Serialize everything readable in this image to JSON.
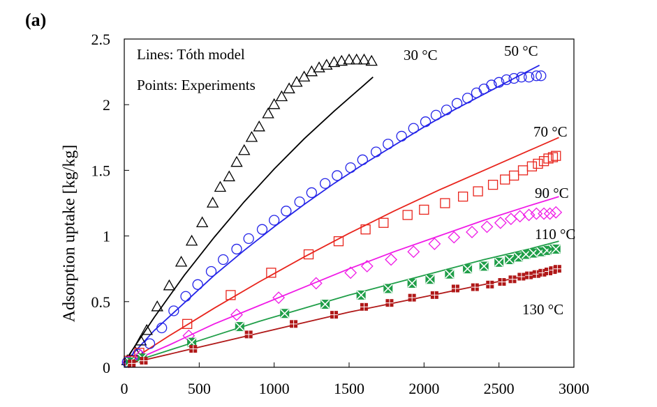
{
  "panel_label": "(a)",
  "notes": {
    "lines": "Lines: Tóth model",
    "points": "Points: Experiments"
  },
  "chart_data": {
    "type": "scatter",
    "ylabel": "Adsorption uptake [kg/kg]",
    "xlabel": "",
    "xlim": [
      0,
      3000
    ],
    "ylim": [
      0,
      2.5
    ],
    "x_ticks": [
      "0",
      "500",
      "1000",
      "1500",
      "2000",
      "2500",
      "3000"
    ],
    "y_ticks": [
      "0",
      "0.5",
      "1",
      "1.5",
      "2",
      "2.5"
    ],
    "grid": false,
    "series": [
      {
        "name": "30 °C",
        "color": "#000000",
        "marker": "triangle",
        "points": [
          [
            20,
            0.05
          ],
          [
            70,
            0.12
          ],
          [
            110,
            0.2
          ],
          [
            150,
            0.28
          ],
          [
            220,
            0.46
          ],
          [
            300,
            0.62
          ],
          [
            380,
            0.8
          ],
          [
            450,
            0.96
          ],
          [
            520,
            1.1
          ],
          [
            590,
            1.25
          ],
          [
            640,
            1.37
          ],
          [
            700,
            1.45
          ],
          [
            750,
            1.56
          ],
          [
            800,
            1.65
          ],
          [
            850,
            1.75
          ],
          [
            900,
            1.83
          ],
          [
            960,
            1.93
          ],
          [
            1000,
            2.0
          ],
          [
            1050,
            2.06
          ],
          [
            1100,
            2.12
          ],
          [
            1150,
            2.17
          ],
          [
            1200,
            2.21
          ],
          [
            1250,
            2.25
          ],
          [
            1300,
            2.28
          ],
          [
            1350,
            2.3
          ],
          [
            1400,
            2.32
          ],
          [
            1450,
            2.33
          ],
          [
            1500,
            2.34
          ],
          [
            1550,
            2.34
          ],
          [
            1600,
            2.34
          ],
          [
            1650,
            2.33
          ]
        ],
        "model": [
          [
            0,
            0.04
          ],
          [
            200,
            0.38
          ],
          [
            400,
            0.7
          ],
          [
            600,
            0.99
          ],
          [
            800,
            1.26
          ],
          [
            1000,
            1.51
          ],
          [
            1200,
            1.74
          ],
          [
            1400,
            1.95
          ],
          [
            1600,
            2.15
          ],
          [
            1660,
            2.21
          ]
        ]
      },
      {
        "name": "50 °C",
        "color": "#2424e8",
        "marker": "circle",
        "points": [
          [
            20,
            0.04
          ],
          [
            90,
            0.1
          ],
          [
            170,
            0.18
          ],
          [
            250,
            0.3
          ],
          [
            330,
            0.43
          ],
          [
            410,
            0.54
          ],
          [
            490,
            0.63
          ],
          [
            580,
            0.73
          ],
          [
            660,
            0.82
          ],
          [
            750,
            0.9
          ],
          [
            830,
            0.98
          ],
          [
            920,
            1.05
          ],
          [
            1000,
            1.12
          ],
          [
            1080,
            1.19
          ],
          [
            1170,
            1.26
          ],
          [
            1250,
            1.33
          ],
          [
            1340,
            1.4
          ],
          [
            1420,
            1.46
          ],
          [
            1510,
            1.52
          ],
          [
            1590,
            1.58
          ],
          [
            1680,
            1.64
          ],
          [
            1760,
            1.7
          ],
          [
            1850,
            1.76
          ],
          [
            1930,
            1.82
          ],
          [
            2010,
            1.87
          ],
          [
            2080,
            1.92
          ],
          [
            2150,
            1.96
          ],
          [
            2220,
            2.01
          ],
          [
            2290,
            2.05
          ],
          [
            2350,
            2.09
          ],
          [
            2400,
            2.12
          ],
          [
            2450,
            2.15
          ],
          [
            2500,
            2.17
          ],
          [
            2550,
            2.19
          ],
          [
            2600,
            2.2
          ],
          [
            2650,
            2.21
          ],
          [
            2700,
            2.21
          ],
          [
            2750,
            2.22
          ],
          [
            2780,
            2.22
          ]
        ],
        "model": [
          [
            0,
            0.03
          ],
          [
            200,
            0.28
          ],
          [
            400,
            0.49
          ],
          [
            600,
            0.7
          ],
          [
            800,
            0.89
          ],
          [
            1000,
            1.07
          ],
          [
            1200,
            1.24
          ],
          [
            1400,
            1.4
          ],
          [
            1600,
            1.55
          ],
          [
            1800,
            1.69
          ],
          [
            2000,
            1.83
          ],
          [
            2200,
            1.96
          ],
          [
            2400,
            2.08
          ],
          [
            2600,
            2.2
          ],
          [
            2770,
            2.3
          ]
        ]
      },
      {
        "name": "70 °C",
        "color": "#e8241c",
        "marker": "square",
        "points": [
          [
            30,
            0.05
          ],
          [
            100,
            0.11
          ],
          [
            420,
            0.33
          ],
          [
            710,
            0.55
          ],
          [
            980,
            0.72
          ],
          [
            1230,
            0.86
          ],
          [
            1430,
            0.96
          ],
          [
            1610,
            1.05
          ],
          [
            1730,
            1.1
          ],
          [
            1890,
            1.16
          ],
          [
            2000,
            1.2
          ],
          [
            2140,
            1.25
          ],
          [
            2260,
            1.3
          ],
          [
            2360,
            1.34
          ],
          [
            2460,
            1.39
          ],
          [
            2540,
            1.43
          ],
          [
            2600,
            1.46
          ],
          [
            2660,
            1.5
          ],
          [
            2720,
            1.53
          ],
          [
            2760,
            1.55
          ],
          [
            2800,
            1.57
          ],
          [
            2830,
            1.59
          ],
          [
            2860,
            1.6
          ],
          [
            2880,
            1.61
          ]
        ],
        "model": [
          [
            0,
            0.02
          ],
          [
            300,
            0.24
          ],
          [
            600,
            0.45
          ],
          [
            900,
            0.65
          ],
          [
            1200,
            0.84
          ],
          [
            1500,
            1.02
          ],
          [
            1800,
            1.19
          ],
          [
            2100,
            1.35
          ],
          [
            2400,
            1.5
          ],
          [
            2700,
            1.65
          ],
          [
            2900,
            1.75
          ]
        ]
      },
      {
        "name": "90 °C",
        "color": "#f019e6",
        "marker": "diamond",
        "points": [
          [
            30,
            0.04
          ],
          [
            110,
            0.09
          ],
          [
            430,
            0.24
          ],
          [
            750,
            0.4
          ],
          [
            1030,
            0.53
          ],
          [
            1280,
            0.64
          ],
          [
            1510,
            0.72
          ],
          [
            1620,
            0.77
          ],
          [
            1780,
            0.82
          ],
          [
            1930,
            0.88
          ],
          [
            2070,
            0.94
          ],
          [
            2200,
            0.99
          ],
          [
            2320,
            1.03
          ],
          [
            2420,
            1.07
          ],
          [
            2510,
            1.1
          ],
          [
            2580,
            1.13
          ],
          [
            2640,
            1.15
          ],
          [
            2700,
            1.16
          ],
          [
            2750,
            1.17
          ],
          [
            2800,
            1.17
          ],
          [
            2840,
            1.17
          ],
          [
            2880,
            1.18
          ]
        ],
        "model": [
          [
            0,
            0.02
          ],
          [
            300,
            0.17
          ],
          [
            600,
            0.33
          ],
          [
            900,
            0.47
          ],
          [
            1200,
            0.61
          ],
          [
            1500,
            0.75
          ],
          [
            1800,
            0.88
          ],
          [
            2100,
            1.0
          ],
          [
            2400,
            1.12
          ],
          [
            2700,
            1.23
          ],
          [
            2900,
            1.3
          ]
        ]
      },
      {
        "name": "110 °C",
        "color": "#1f9e48",
        "marker": "crossed-square",
        "points": [
          [
            40,
            0.04
          ],
          [
            120,
            0.07
          ],
          [
            450,
            0.19
          ],
          [
            770,
            0.31
          ],
          [
            1070,
            0.41
          ],
          [
            1340,
            0.48
          ],
          [
            1580,
            0.55
          ],
          [
            1760,
            0.6
          ],
          [
            1920,
            0.64
          ],
          [
            2040,
            0.67
          ],
          [
            2170,
            0.71
          ],
          [
            2290,
            0.75
          ],
          [
            2400,
            0.77
          ],
          [
            2500,
            0.8
          ],
          [
            2570,
            0.82
          ],
          [
            2630,
            0.84
          ],
          [
            2680,
            0.86
          ],
          [
            2730,
            0.87
          ],
          [
            2780,
            0.88
          ],
          [
            2820,
            0.89
          ],
          [
            2860,
            0.9
          ],
          [
            2880,
            0.9
          ]
        ],
        "model": [
          [
            0,
            0.02
          ],
          [
            300,
            0.13
          ],
          [
            600,
            0.24
          ],
          [
            900,
            0.35
          ],
          [
            1200,
            0.45
          ],
          [
            1500,
            0.55
          ],
          [
            1800,
            0.64
          ],
          [
            2100,
            0.73
          ],
          [
            2400,
            0.82
          ],
          [
            2700,
            0.9
          ],
          [
            2900,
            0.96
          ]
        ]
      },
      {
        "name": "130 °C",
        "color": "#b01818",
        "marker": "filled-square",
        "points": [
          [
            50,
            0.03
          ],
          [
            130,
            0.05
          ],
          [
            460,
            0.14
          ],
          [
            830,
            0.25
          ],
          [
            1130,
            0.33
          ],
          [
            1400,
            0.4
          ],
          [
            1600,
            0.46
          ],
          [
            1770,
            0.49
          ],
          [
            1920,
            0.53
          ],
          [
            2070,
            0.55
          ],
          [
            2210,
            0.6
          ],
          [
            2340,
            0.61
          ],
          [
            2440,
            0.63
          ],
          [
            2520,
            0.65
          ],
          [
            2590,
            0.67
          ],
          [
            2650,
            0.69
          ],
          [
            2700,
            0.7
          ],
          [
            2750,
            0.71
          ],
          [
            2790,
            0.72
          ],
          [
            2830,
            0.73
          ],
          [
            2860,
            0.74
          ],
          [
            2890,
            0.75
          ]
        ],
        "model": [
          [
            0,
            0.02
          ],
          [
            300,
            0.1
          ],
          [
            600,
            0.18
          ],
          [
            900,
            0.26
          ],
          [
            1200,
            0.34
          ],
          [
            1500,
            0.42
          ],
          [
            1800,
            0.49
          ],
          [
            2100,
            0.56
          ],
          [
            2400,
            0.63
          ],
          [
            2700,
            0.7
          ],
          [
            2900,
            0.74
          ]
        ]
      }
    ]
  }
}
